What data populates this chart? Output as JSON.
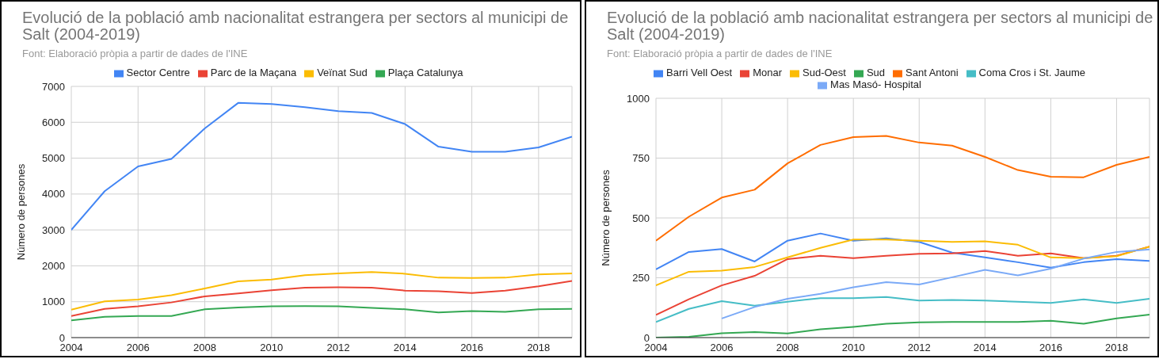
{
  "chart_data": [
    {
      "type": "line",
      "title": "Evolució de la població amb nacionalitat estrangera per sectors al municipi de Salt (2004-2019)",
      "subtitle": "Font: Elaboració pròpia a partir de dades de l'INE",
      "ylabel": "Número de persones",
      "x": [
        2004,
        2005,
        2006,
        2007,
        2008,
        2009,
        2010,
        2011,
        2012,
        2013,
        2014,
        2015,
        2016,
        2017,
        2018,
        2019
      ],
      "series": [
        {
          "name": "Sector Centre",
          "color": "#4285f4",
          "values": [
            3000,
            4080,
            4770,
            4980,
            5830,
            6540,
            6510,
            6420,
            6310,
            6260,
            5950,
            5320,
            5180,
            5180,
            5300,
            5600
          ]
        },
        {
          "name": "Parc de la Maçana",
          "color": "#ea4335",
          "values": [
            600,
            800,
            870,
            980,
            1150,
            1230,
            1320,
            1390,
            1400,
            1390,
            1310,
            1290,
            1240,
            1310,
            1430,
            1580
          ]
        },
        {
          "name": "Veïnat Sud",
          "color": "#fbbc04",
          "values": [
            780,
            1010,
            1060,
            1180,
            1370,
            1570,
            1620,
            1740,
            1790,
            1830,
            1780,
            1670,
            1660,
            1670,
            1760,
            1790
          ]
        },
        {
          "name": "Plaça Catalunya",
          "color": "#34a853",
          "values": [
            480,
            580,
            600,
            600,
            790,
            840,
            870,
            880,
            870,
            830,
            790,
            700,
            740,
            720,
            790,
            800
          ]
        }
      ],
      "xlim": [
        2004,
        2019
      ],
      "xticks": [
        2004,
        2006,
        2008,
        2010,
        2012,
        2014,
        2016,
        2018
      ],
      "ylim": [
        0,
        7000
      ],
      "yticks": [
        0,
        1000,
        2000,
        3000,
        4000,
        5000,
        6000,
        7000
      ],
      "grid": true,
      "legend": "top",
      "marker": "none",
      "line_style": "solid"
    },
    {
      "type": "line",
      "title": "Evolució de la població amb nacionalitat estrangera per sectors al municipi de Salt (2004-2019)",
      "subtitle": "Font: Elaboració pròpia a partir de dades de l'INE",
      "ylabel": "Número de persones",
      "x": [
        2004,
        2005,
        2006,
        2007,
        2008,
        2009,
        2010,
        2011,
        2012,
        2013,
        2014,
        2015,
        2016,
        2017,
        2018,
        2019
      ],
      "series": [
        {
          "name": "Barri Vell Oest",
          "color": "#4285f4",
          "values": [
            285,
            358,
            370,
            318,
            405,
            435,
            405,
            415,
            400,
            355,
            335,
            315,
            292,
            315,
            328,
            320
          ]
        },
        {
          "name": "Monar",
          "color": "#ea4335",
          "values": [
            95,
            160,
            218,
            258,
            328,
            342,
            332,
            342,
            350,
            352,
            362,
            342,
            352,
            332,
            342,
            380
          ]
        },
        {
          "name": "Sud-Oest",
          "color": "#fbbc04",
          "values": [
            218,
            275,
            280,
            295,
            335,
            375,
            410,
            410,
            405,
            400,
            402,
            388,
            335,
            332,
            340,
            380
          ]
        },
        {
          "name": "Sud",
          "color": "#34a853",
          "values": [
            0,
            3,
            18,
            23,
            17,
            35,
            45,
            58,
            64,
            65,
            65,
            65,
            70,
            58,
            80,
            96
          ]
        },
        {
          "name": "Sant Antoni",
          "color": "#ff6d01",
          "values": [
            405,
            505,
            585,
            618,
            728,
            805,
            838,
            843,
            815,
            802,
            755,
            700,
            672,
            670,
            722,
            755
          ]
        },
        {
          "name": "Coma Cros i St. Jaume",
          "color": "#46bdc6",
          "values": [
            65,
            120,
            152,
            133,
            150,
            165,
            165,
            170,
            155,
            157,
            155,
            150,
            145,
            160,
            145,
            162
          ]
        },
        {
          "name": "Mas Masó- Hospital",
          "color": "#7baaf7",
          "values": [
            null,
            null,
            80,
            128,
            162,
            183,
            210,
            232,
            222,
            252,
            283,
            260,
            288,
            330,
            358,
            368
          ]
        }
      ],
      "xlim": [
        2004,
        2019
      ],
      "xticks": [
        2004,
        2006,
        2008,
        2010,
        2012,
        2014,
        2016,
        2018
      ],
      "ylim": [
        0,
        1000
      ],
      "yticks": [
        0,
        250,
        500,
        750,
        1000
      ],
      "grid": true,
      "legend": "top",
      "marker": "none",
      "line_style": "solid"
    }
  ]
}
